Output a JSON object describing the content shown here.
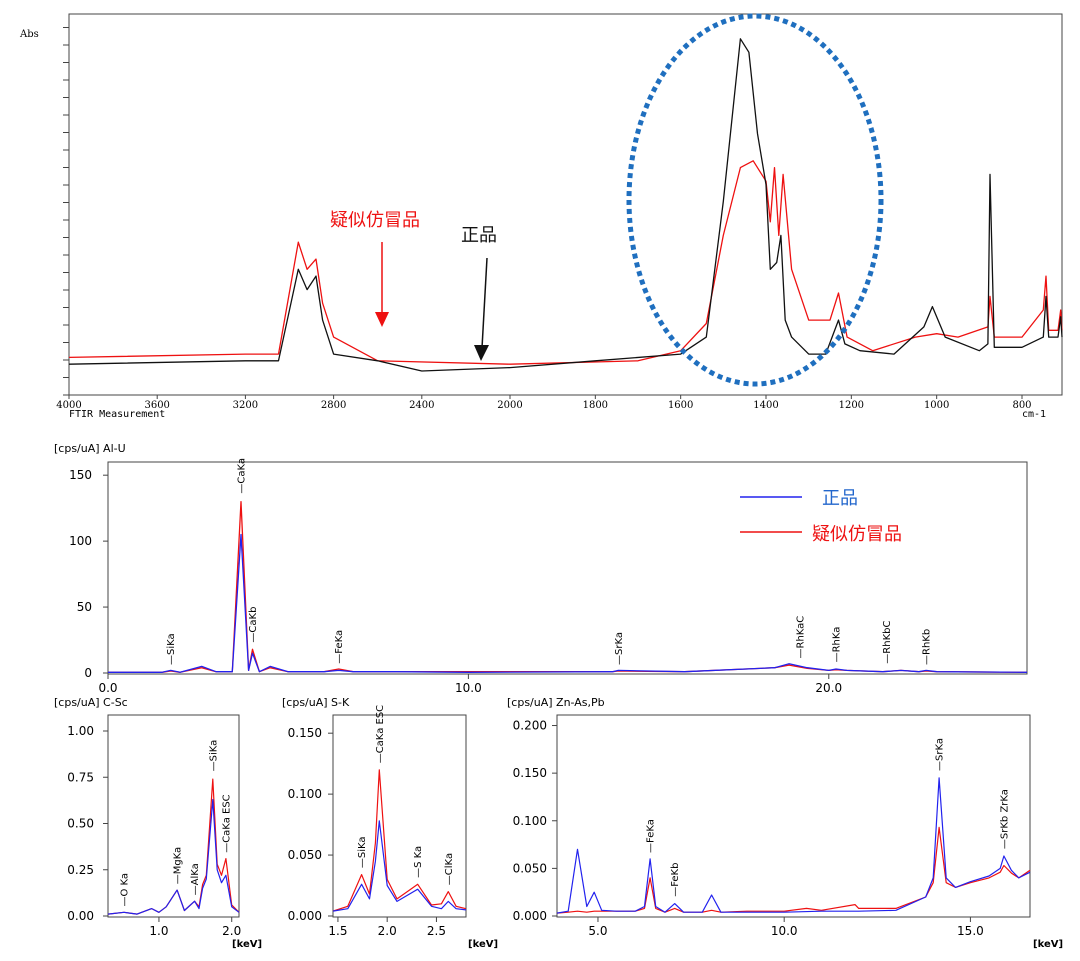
{
  "ftir": {
    "ylabel": "Abs",
    "bottom_left_label": "FTIR Measurement",
    "x_unit": "cm-1",
    "x_ticks": [
      "4000",
      "3600",
      "3200",
      "2800",
      "2400",
      "2000",
      "1800",
      "1600",
      "1400",
      "1200",
      "1000",
      "800"
    ],
    "label_suspect": "疑似仿冒品",
    "label_genuine": "正品",
    "colors": {
      "suspect": "#ee1111",
      "genuine": "#111111",
      "highlight": "#1f6fbf"
    }
  },
  "edx_main": {
    "title": "[cps/uA] Al-U",
    "y_ticks": [
      "150",
      "100",
      "50",
      "0"
    ],
    "x_ticks": [
      "0.0",
      "10.0",
      "20.0"
    ],
    "peaks": [
      "SiKa",
      "CaKa",
      "CaKb",
      "FeKa",
      "SrKa",
      "RhKaC",
      "RhKa",
      "RhKbC",
      "RhKb"
    ],
    "legend": {
      "genuine": "正品",
      "suspect": "疑似仿冒品"
    },
    "colors": {
      "genuine": "#2222ee",
      "suspect": "#ee1111"
    }
  },
  "edx_c_sc": {
    "title": "[cps/uA] C-Sc",
    "y_ticks": [
      "1.00",
      "0.75",
      "0.50",
      "0.25",
      "0.00"
    ],
    "x_ticks": [
      "1.0",
      "2.0"
    ],
    "x_unit": "[keV]",
    "peaks": [
      "O Ka",
      "MgKa",
      "AlKa",
      "SiKa",
      "CaKa ESC"
    ]
  },
  "edx_s_k": {
    "title": "[cps/uA] S-K",
    "y_ticks": [
      "0.150",
      "0.100",
      "0.050",
      "0.000"
    ],
    "x_ticks": [
      "1.5",
      "2.0",
      "2.5"
    ],
    "x_unit": "[keV]",
    "peaks": [
      "SiKa",
      "CaKa ESC",
      "S Ka",
      "ClKa"
    ]
  },
  "edx_zn_as": {
    "title": "[cps/uA] Zn-As,Pb",
    "y_ticks": [
      "0.200",
      "0.150",
      "0.100",
      "0.050",
      "0.000"
    ],
    "x_ticks": [
      "5.0",
      "10.0",
      "15.0"
    ],
    "x_unit": "[keV]",
    "peaks": [
      "FeKa",
      "FeKb",
      "SrKa",
      "SrKb ZrKa"
    ]
  },
  "chart_data": [
    {
      "type": "line",
      "title": "",
      "xlabel": "cm-1",
      "ylabel": "Abs",
      "xlim": [
        4000,
        650
      ],
      "x_scale": "piecewise (4000-2000 compressed, 2000-650 expanded)",
      "grid": false,
      "series": [
        {
          "name": "疑似仿冒品",
          "color": "#ee1111",
          "x": [
            4000,
            3200,
            3050,
            2960,
            2920,
            2880,
            2850,
            2800,
            2600,
            2000,
            1700,
            1600,
            1540,
            1500,
            1460,
            1430,
            1400,
            1390,
            1380,
            1370,
            1360,
            1340,
            1300,
            1250,
            1230,
            1210,
            1150,
            1050,
            1000,
            950,
            880,
            875,
            865,
            850,
            800,
            720,
            710,
            700,
            665,
            655,
            650
          ],
          "y": [
            0.04,
            0.05,
            0.05,
            0.38,
            0.3,
            0.33,
            0.2,
            0.1,
            0.03,
            0.02,
            0.03,
            0.06,
            0.14,
            0.4,
            0.6,
            0.62,
            0.56,
            0.44,
            0.6,
            0.4,
            0.58,
            0.3,
            0.15,
            0.15,
            0.23,
            0.1,
            0.06,
            0.1,
            0.11,
            0.1,
            0.13,
            0.22,
            0.1,
            0.1,
            0.1,
            0.18,
            0.28,
            0.12,
            0.12,
            0.18,
            0.12
          ]
        },
        {
          "name": "正品",
          "color": "#111111",
          "x": [
            4000,
            3200,
            3050,
            2960,
            2920,
            2880,
            2850,
            2800,
            2600,
            2400,
            2000,
            1800,
            1600,
            1540,
            1500,
            1460,
            1440,
            1420,
            1400,
            1390,
            1375,
            1365,
            1355,
            1340,
            1300,
            1260,
            1230,
            1215,
            1180,
            1100,
            1030,
            1010,
            980,
            900,
            880,
            875,
            865,
            850,
            800,
            720,
            710,
            700,
            665,
            655,
            650
          ],
          "y": [
            0.02,
            0.03,
            0.03,
            0.3,
            0.24,
            0.28,
            0.15,
            0.05,
            0.03,
            0.0,
            0.01,
            0.03,
            0.05,
            0.1,
            0.5,
            0.98,
            0.94,
            0.7,
            0.55,
            0.3,
            0.32,
            0.4,
            0.15,
            0.1,
            0.05,
            0.05,
            0.15,
            0.08,
            0.06,
            0.05,
            0.13,
            0.19,
            0.1,
            0.06,
            0.08,
            0.58,
            0.07,
            0.07,
            0.07,
            0.1,
            0.22,
            0.1,
            0.1,
            0.16,
            0.1
          ]
        }
      ]
    },
    {
      "type": "line",
      "title": "[cps/uA] Al-U",
      "xlim": [
        0,
        25.5
      ],
      "ylim": [
        0,
        160
      ],
      "legend": "top-right",
      "series": [
        {
          "name": "正品",
          "color": "#2222ee",
          "x": [
            0,
            1.5,
            1.74,
            2.0,
            2.6,
            3.0,
            3.45,
            3.69,
            3.9,
            4.01,
            4.2,
            4.5,
            5.0,
            6.0,
            6.4,
            6.8,
            8.0,
            10.0,
            14.0,
            14.16,
            16.0,
            18.5,
            18.9,
            19.4,
            20.0,
            20.2,
            20.5,
            21.5,
            22.0,
            22.5,
            22.7,
            23.0,
            25.5
          ],
          "y": [
            0.5,
            0.5,
            2,
            0.5,
            5,
            1,
            1,
            105,
            2,
            15,
            1,
            5,
            1,
            1,
            2,
            1,
            1,
            0.5,
            1,
            2,
            1,
            4,
            7,
            4,
            2,
            3,
            2,
            1,
            2,
            1,
            2,
            1,
            0.5
          ]
        },
        {
          "name": "疑似仿冒品",
          "color": "#ee1111",
          "x": [
            0,
            1.5,
            1.74,
            2.0,
            2.6,
            3.0,
            3.45,
            3.69,
            3.9,
            4.01,
            4.2,
            4.5,
            5.0,
            6.0,
            6.4,
            6.8,
            8.0,
            10.0,
            14.0,
            14.16,
            16.0,
            18.5,
            18.9,
            19.4,
            20.0,
            20.2,
            20.5,
            21.5,
            22.0,
            22.5,
            22.7,
            23.0,
            25.5
          ],
          "y": [
            0.5,
            0.5,
            1.5,
            0.5,
            4,
            1,
            1,
            130,
            2,
            18,
            1,
            4,
            1,
            1,
            3,
            1,
            1,
            1,
            1,
            1.5,
            1,
            4,
            6,
            3.5,
            2,
            2.5,
            2,
            1,
            2,
            1,
            1.5,
            1,
            0.5
          ]
        }
      ]
    },
    {
      "type": "line",
      "title": "[cps/uA] C-Sc",
      "xlabel": "[keV]",
      "xlim": [
        0.3,
        2.1
      ],
      "ylim": [
        0,
        1.0
      ],
      "series": [
        {
          "name": "正品",
          "color": "#2222ee",
          "x": [
            0.3,
            0.52,
            0.7,
            0.9,
            1.0,
            1.1,
            1.25,
            1.35,
            1.49,
            1.55,
            1.6,
            1.65,
            1.74,
            1.8,
            1.86,
            1.92,
            2.0,
            2.1
          ],
          "y": [
            0.01,
            0.02,
            0.01,
            0.04,
            0.02,
            0.05,
            0.14,
            0.03,
            0.08,
            0.04,
            0.15,
            0.2,
            0.63,
            0.25,
            0.18,
            0.22,
            0.05,
            0.02
          ]
        },
        {
          "name": "疑似仿冒品",
          "color": "#ee1111",
          "x": [
            0.3,
            0.52,
            0.7,
            0.9,
            1.0,
            1.1,
            1.25,
            1.35,
            1.49,
            1.55,
            1.6,
            1.65,
            1.74,
            1.8,
            1.86,
            1.92,
            2.0,
            2.1
          ],
          "y": [
            0.01,
            0.02,
            0.01,
            0.04,
            0.02,
            0.05,
            0.14,
            0.03,
            0.08,
            0.05,
            0.17,
            0.22,
            0.74,
            0.28,
            0.22,
            0.31,
            0.06,
            0.02
          ]
        }
      ]
    },
    {
      "type": "line",
      "title": "[cps/uA] S-K",
      "xlabel": "[keV]",
      "xlim": [
        1.45,
        2.8
      ],
      "ylim": [
        0,
        0.16
      ],
      "series": [
        {
          "name": "正品",
          "color": "#2222ee",
          "x": [
            1.45,
            1.6,
            1.74,
            1.82,
            1.88,
            1.92,
            2.0,
            2.1,
            2.31,
            2.45,
            2.55,
            2.62,
            2.7,
            2.8
          ],
          "y": [
            0.004,
            0.006,
            0.026,
            0.014,
            0.045,
            0.078,
            0.025,
            0.012,
            0.022,
            0.008,
            0.006,
            0.012,
            0.006,
            0.005
          ]
        },
        {
          "name": "疑似仿冒品",
          "color": "#ee1111",
          "x": [
            1.45,
            1.6,
            1.74,
            1.82,
            1.88,
            1.92,
            2.0,
            2.1,
            2.31,
            2.45,
            2.55,
            2.62,
            2.7,
            2.8
          ],
          "y": [
            0.004,
            0.008,
            0.034,
            0.018,
            0.06,
            0.12,
            0.03,
            0.014,
            0.026,
            0.009,
            0.01,
            0.02,
            0.008,
            0.006
          ]
        }
      ]
    },
    {
      "type": "line",
      "title": "[cps/uA] Zn-As,Pb",
      "xlabel": "[keV]",
      "xlim": [
        3.9,
        16.6
      ],
      "ylim": [
        0,
        0.21
      ],
      "series": [
        {
          "name": "正品",
          "color": "#2222ee",
          "x": [
            3.9,
            4.2,
            4.45,
            4.7,
            4.9,
            5.1,
            5.5,
            6.0,
            6.25,
            6.4,
            6.55,
            6.8,
            7.06,
            7.3,
            7.8,
            8.05,
            8.3,
            9.0,
            10.0,
            11.0,
            12.0,
            13.0,
            13.8,
            14.0,
            14.16,
            14.35,
            14.6,
            15.0,
            15.5,
            15.8,
            15.9,
            16.1,
            16.3,
            16.6
          ],
          "y": [
            0.003,
            0.005,
            0.07,
            0.01,
            0.025,
            0.006,
            0.005,
            0.005,
            0.01,
            0.06,
            0.01,
            0.004,
            0.013,
            0.004,
            0.004,
            0.022,
            0.004,
            0.004,
            0.004,
            0.005,
            0.005,
            0.006,
            0.02,
            0.04,
            0.145,
            0.04,
            0.03,
            0.036,
            0.042,
            0.05,
            0.063,
            0.048,
            0.04,
            0.046
          ]
        },
        {
          "name": "疑似仿冒品",
          "color": "#ee1111",
          "x": [
            3.9,
            4.2,
            4.45,
            4.7,
            4.9,
            5.1,
            5.5,
            6.0,
            6.25,
            6.4,
            6.55,
            6.8,
            7.06,
            7.3,
            7.8,
            8.05,
            8.3,
            9.0,
            10.0,
            10.6,
            11.0,
            11.9,
            12.0,
            13.0,
            13.8,
            14.0,
            14.16,
            14.35,
            14.6,
            15.0,
            15.5,
            15.8,
            15.9,
            16.1,
            16.3,
            16.6
          ],
          "y": [
            0.003,
            0.004,
            0.005,
            0.004,
            0.005,
            0.005,
            0.005,
            0.005,
            0.008,
            0.04,
            0.008,
            0.004,
            0.008,
            0.004,
            0.004,
            0.006,
            0.004,
            0.005,
            0.005,
            0.008,
            0.006,
            0.012,
            0.008,
            0.008,
            0.02,
            0.035,
            0.093,
            0.035,
            0.03,
            0.035,
            0.04,
            0.046,
            0.053,
            0.045,
            0.04,
            0.048
          ]
        }
      ]
    }
  ]
}
